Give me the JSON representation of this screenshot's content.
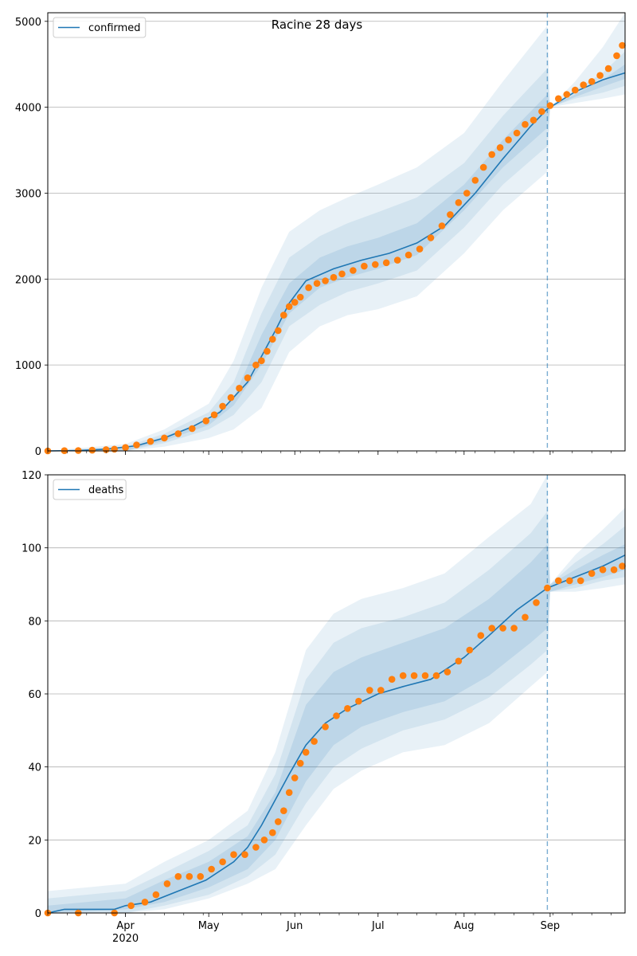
{
  "figure": {
    "title": "Racine 28 days"
  },
  "chart_data": [
    {
      "type": "line",
      "title": "Racine 28 days",
      "legend": {
        "entries": [
          "confirmed"
        ],
        "placement": "top-left"
      },
      "grid": "horizontal",
      "ylim": [
        0,
        5100
      ],
      "yticks": [
        0,
        1000,
        2000,
        3000,
        4000,
        5000
      ],
      "xlim": [
        "2020-03-04",
        "2020-09-28"
      ],
      "xticks": [
        {
          "date": "2020-04-01",
          "label": "Apr",
          "sublabel": "2020"
        },
        {
          "date": "2020-05-01",
          "label": "May"
        },
        {
          "date": "2020-06-01",
          "label": "Jun"
        },
        {
          "date": "2020-07-01",
          "label": "Jul"
        },
        {
          "date": "2020-08-01",
          "label": "Aug"
        },
        {
          "date": "2020-09-01",
          "label": "Sep"
        }
      ],
      "forecast_start": "2020-08-31",
      "colors": {
        "model": "#1f77b4",
        "observed": "#ff7f0e",
        "band": "#1f77b4"
      },
      "model_line": {
        "name": "confirmed",
        "x": [
          "2020-03-04",
          "2020-03-15",
          "2020-03-25",
          "2020-04-05",
          "2020-04-15",
          "2020-04-25",
          "2020-05-05",
          "2020-05-15",
          "2020-05-20",
          "2020-05-25",
          "2020-05-30",
          "2020-06-05",
          "2020-06-15",
          "2020-06-25",
          "2020-07-05",
          "2020-07-15",
          "2020-07-25",
          "2020-08-05",
          "2020-08-15",
          "2020-08-25",
          "2020-08-31",
          "2020-09-10",
          "2020-09-20",
          "2020-09-28"
        ],
        "y": [
          0,
          5,
          20,
          60,
          150,
          280,
          450,
          800,
          1100,
          1400,
          1720,
          1980,
          2120,
          2220,
          2300,
          2420,
          2620,
          3000,
          3400,
          3780,
          3980,
          4180,
          4320,
          4400
        ]
      },
      "bands": {
        "x": [
          "2020-03-04",
          "2020-04-01",
          "2020-04-15",
          "2020-05-01",
          "2020-05-10",
          "2020-05-20",
          "2020-05-30",
          "2020-06-10",
          "2020-06-20",
          "2020-07-01",
          "2020-07-15",
          "2020-08-01",
          "2020-08-15",
          "2020-08-31",
          "2020-09-01",
          "2020-09-10",
          "2020-09-20",
          "2020-09-28"
        ],
        "outer_high": [
          0,
          80,
          250,
          550,
          1050,
          1900,
          2550,
          2800,
          2950,
          3100,
          3300,
          3700,
          4300,
          4950,
          4000,
          4300,
          4700,
          5100
        ],
        "outer_low": [
          0,
          0,
          50,
          150,
          250,
          500,
          1150,
          1450,
          1580,
          1650,
          1800,
          2300,
          2800,
          3250,
          4000,
          4050,
          4100,
          4150
        ],
        "mid_high": [
          0,
          50,
          200,
          450,
          800,
          1600,
          2250,
          2500,
          2650,
          2780,
          2950,
          3350,
          3900,
          4450,
          4000,
          4200,
          4400,
          4650
        ],
        "mid_low": [
          0,
          0,
          90,
          250,
          420,
          800,
          1450,
          1700,
          1850,
          1950,
          2100,
          2600,
          3100,
          3550,
          4000,
          4100,
          4170,
          4250
        ],
        "inner_high": [
          0,
          30,
          170,
          360,
          620,
          1350,
          1950,
          2250,
          2380,
          2480,
          2650,
          3100,
          3620,
          4150,
          4000,
          4150,
          4320,
          4500
        ],
        "inner_low": [
          0,
          0,
          120,
          300,
          530,
          1000,
          1600,
          1900,
          2020,
          2120,
          2280,
          2800,
          3300,
          3760,
          4000,
          4120,
          4240,
          4330
        ]
      },
      "observed": {
        "x": [
          "2020-03-04",
          "2020-03-10",
          "2020-03-15",
          "2020-03-20",
          "2020-03-25",
          "2020-03-28",
          "2020-04-01",
          "2020-04-05",
          "2020-04-10",
          "2020-04-15",
          "2020-04-20",
          "2020-04-25",
          "2020-04-30",
          "2020-05-03",
          "2020-05-06",
          "2020-05-09",
          "2020-05-12",
          "2020-05-15",
          "2020-05-18",
          "2020-05-20",
          "2020-05-22",
          "2020-05-24",
          "2020-05-26",
          "2020-05-28",
          "2020-05-30",
          "2020-06-01",
          "2020-06-03",
          "2020-06-06",
          "2020-06-09",
          "2020-06-12",
          "2020-06-15",
          "2020-06-18",
          "2020-06-22",
          "2020-06-26",
          "2020-06-30",
          "2020-07-04",
          "2020-07-08",
          "2020-07-12",
          "2020-07-16",
          "2020-07-20",
          "2020-07-24",
          "2020-07-27",
          "2020-07-30",
          "2020-08-02",
          "2020-08-05",
          "2020-08-08",
          "2020-08-11",
          "2020-08-14",
          "2020-08-17",
          "2020-08-20",
          "2020-08-23",
          "2020-08-26",
          "2020-08-29",
          "2020-09-01",
          "2020-09-04",
          "2020-09-07",
          "2020-09-10",
          "2020-09-13",
          "2020-09-16",
          "2020-09-19",
          "2020-09-22",
          "2020-09-25",
          "2020-09-27"
        ],
        "y": [
          0,
          3,
          5,
          8,
          15,
          20,
          40,
          70,
          110,
          150,
          200,
          260,
          350,
          420,
          520,
          620,
          730,
          850,
          1000,
          1050,
          1160,
          1300,
          1400,
          1580,
          1680,
          1730,
          1790,
          1900,
          1950,
          1980,
          2020,
          2060,
          2100,
          2150,
          2170,
          2190,
          2220,
          2280,
          2350,
          2480,
          2620,
          2750,
          2890,
          3000,
          3150,
          3300,
          3450,
          3530,
          3620,
          3700,
          3800,
          3850,
          3950,
          4020,
          4100,
          4150,
          4200,
          4260,
          4300,
          4370,
          4450,
          4600,
          4720
        ]
      }
    },
    {
      "type": "line",
      "legend": {
        "entries": [
          "deaths"
        ],
        "placement": "top-left"
      },
      "grid": "horizontal",
      "ylim": [
        0,
        120
      ],
      "yticks": [
        0,
        20,
        40,
        60,
        80,
        100,
        120
      ],
      "xlim": [
        "2020-03-04",
        "2020-09-28"
      ],
      "xticks": [
        {
          "date": "2020-04-01",
          "label": "Apr",
          "sublabel": "2020"
        },
        {
          "date": "2020-05-01",
          "label": "May"
        },
        {
          "date": "2020-06-01",
          "label": "Jun"
        },
        {
          "date": "2020-07-01",
          "label": "Jul"
        },
        {
          "date": "2020-08-01",
          "label": "Aug"
        },
        {
          "date": "2020-09-01",
          "label": "Sep"
        }
      ],
      "forecast_start": "2020-08-31",
      "colors": {
        "model": "#1f77b4",
        "observed": "#ff7f0e",
        "band": "#1f77b4"
      },
      "model_line": {
        "name": "deaths",
        "x": [
          "2020-03-04",
          "2020-03-10",
          "2020-03-28",
          "2020-04-01",
          "2020-04-10",
          "2020-04-20",
          "2020-04-30",
          "2020-05-10",
          "2020-05-15",
          "2020-05-20",
          "2020-05-25",
          "2020-05-30",
          "2020-06-05",
          "2020-06-12",
          "2020-06-20",
          "2020-07-01",
          "2020-07-10",
          "2020-07-20",
          "2020-08-01",
          "2020-08-10",
          "2020-08-20",
          "2020-08-31",
          "2020-09-10",
          "2020-09-20",
          "2020-09-28"
        ],
        "y": [
          0,
          1,
          1,
          2,
          3,
          6,
          9,
          14,
          18,
          24,
          31,
          38,
          46,
          52,
          56,
          60,
          62,
          64,
          70,
          76,
          83,
          89,
          92,
          95,
          98
        ]
      },
      "bands": {
        "x": [
          "2020-03-04",
          "2020-04-01",
          "2020-04-15",
          "2020-05-01",
          "2020-05-15",
          "2020-05-25",
          "2020-06-05",
          "2020-06-15",
          "2020-06-25",
          "2020-07-10",
          "2020-07-25",
          "2020-08-10",
          "2020-08-25",
          "2020-08-31",
          "2020-09-01",
          "2020-09-10",
          "2020-09-20",
          "2020-09-28"
        ],
        "outer_high": [
          6,
          8,
          14,
          20,
          28,
          44,
          72,
          82,
          86,
          89,
          93,
          103,
          112,
          120,
          90,
          98,
          105,
          111
        ],
        "outer_low": [
          0,
          0,
          1,
          4,
          8,
          12,
          24,
          34,
          39,
          44,
          46,
          52,
          62,
          66,
          88,
          88,
          89,
          90
        ],
        "mid_high": [
          4,
          6,
          11,
          17,
          24,
          38,
          64,
          74,
          78,
          81,
          85,
          94,
          104,
          110,
          90,
          96,
          101,
          106
        ],
        "mid_low": [
          0,
          0,
          2,
          5,
          10,
          16,
          30,
          40,
          45,
          50,
          53,
          59,
          68,
          72,
          88,
          89,
          91,
          92
        ],
        "inner_high": [
          2,
          4,
          9,
          14,
          21,
          33,
          57,
          66,
          70,
          74,
          78,
          86,
          96,
          101,
          90,
          94,
          98,
          101
        ],
        "inner_low": [
          0,
          1,
          3,
          7,
          12,
          20,
          36,
          46,
          51,
          55,
          58,
          65,
          74,
          78,
          88,
          90,
          92,
          94
        ]
      },
      "observed": {
        "x": [
          "2020-03-04",
          "2020-03-15",
          "2020-03-28",
          "2020-04-03",
          "2020-04-08",
          "2020-04-12",
          "2020-04-16",
          "2020-04-20",
          "2020-04-24",
          "2020-04-28",
          "2020-05-02",
          "2020-05-06",
          "2020-05-10",
          "2020-05-14",
          "2020-05-18",
          "2020-05-21",
          "2020-05-24",
          "2020-05-26",
          "2020-05-28",
          "2020-05-30",
          "2020-06-01",
          "2020-06-03",
          "2020-06-05",
          "2020-06-08",
          "2020-06-12",
          "2020-06-16",
          "2020-06-20",
          "2020-06-24",
          "2020-06-28",
          "2020-07-02",
          "2020-07-06",
          "2020-07-10",
          "2020-07-14",
          "2020-07-18",
          "2020-07-22",
          "2020-07-26",
          "2020-07-30",
          "2020-08-03",
          "2020-08-07",
          "2020-08-11",
          "2020-08-15",
          "2020-08-19",
          "2020-08-23",
          "2020-08-27",
          "2020-08-31",
          "2020-09-04",
          "2020-09-08",
          "2020-09-12",
          "2020-09-16",
          "2020-09-20",
          "2020-09-24",
          "2020-09-27"
        ],
        "y": [
          0,
          0,
          0,
          2,
          3,
          5,
          8,
          10,
          10,
          10,
          12,
          14,
          16,
          16,
          18,
          20,
          22,
          25,
          28,
          33,
          37,
          41,
          44,
          47,
          51,
          54,
          56,
          58,
          61,
          61,
          64,
          65,
          65,
          65,
          65,
          66,
          69,
          72,
          76,
          78,
          78,
          78,
          81,
          85,
          89,
          91,
          91,
          91,
          93,
          94,
          94,
          95
        ]
      }
    }
  ]
}
